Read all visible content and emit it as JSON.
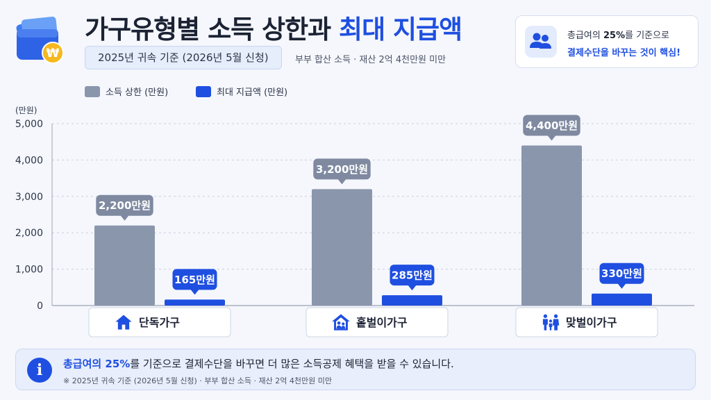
{
  "header": {
    "title_main": "가구유형별 소득 상한과 ",
    "title_highlight": "최대 지급액",
    "subtitle": "2025년 귀속 기준 (2026년 5월 신청)",
    "note": "부부 합산 소득 · 재산 2억 4천만원 미만",
    "logo_icon": "wallet-won-icon"
  },
  "tip": {
    "icon": "people-icon",
    "line1_prefix": "총급여의 ",
    "line1_bold": "25%",
    "line1_suffix": "를 기준으로",
    "line2": "결제수단을 바꾸는 것이 핵심!"
  },
  "legend": {
    "limit_label": "소득 상한 (만원)",
    "max_label": "최대 지급액 (만원)"
  },
  "chart_data": {
    "type": "bar",
    "categories": [
      "단독가구",
      "홑벌이가구",
      "맞벌이가구"
    ],
    "category_icons": [
      "house-icon",
      "house-family-icon",
      "family-icon"
    ],
    "series": [
      {
        "name": "소득 상한 (만원)",
        "values": [
          2200,
          3200,
          4400
        ],
        "color": "#8a96ac",
        "labels": [
          "2,200만원",
          "3,200만원",
          "4,400만원"
        ]
      },
      {
        "name": "최대 지급액 (만원)",
        "values": [
          165,
          285,
          330
        ],
        "color": "#1f4fe0",
        "labels": [
          "165만원",
          "285만원",
          "330만원"
        ]
      }
    ],
    "ylabel": "(만원)",
    "ylim": [
      0,
      5000
    ],
    "yticks": [
      "0",
      "1,000",
      "2,000",
      "3,000",
      "4,000",
      "5,000"
    ],
    "grid": true,
    "legend_position": "top-left"
  },
  "footer": {
    "icon": "info-icon",
    "main_highlight": "총급여의 25%",
    "main_rest": "를 기준으로 결제수단을 바꾸면 더 많은 소득공제 혜택을 받을 수 있습니다.",
    "note": "※ 2025년 귀속 기준 (2026년 5월 신청) · 부부 합산 소득 · 재산 2억 4천만원 미만"
  }
}
